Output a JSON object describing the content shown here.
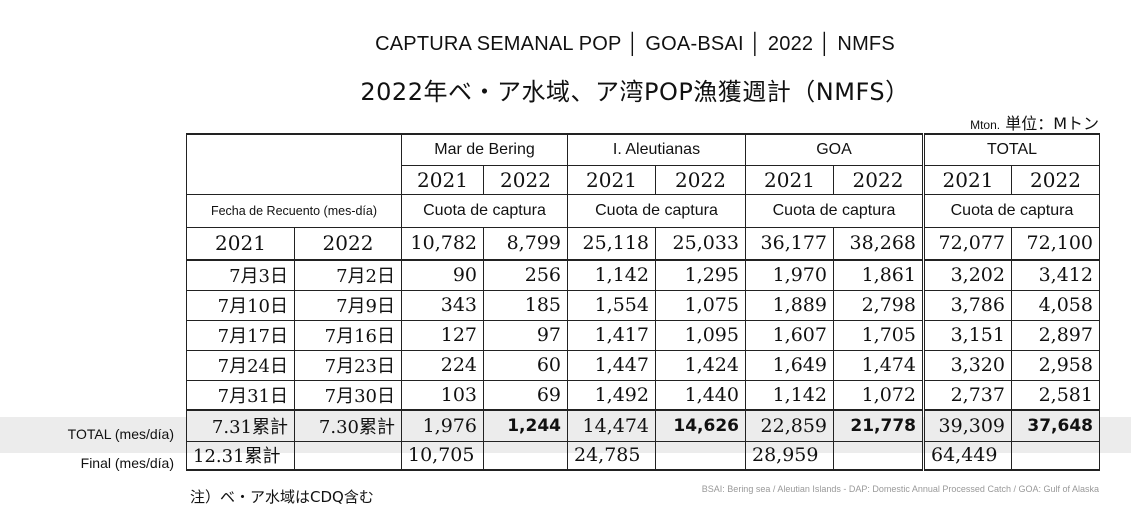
{
  "header": {
    "title": "CAPTURA SEMANAL POP │ GOA-BSAI │ 2022 │ NMFS",
    "subtitle": "2022年ベ・ア水域、ア湾POP漁獲週計（NMFS）",
    "unit_en": "Mton.",
    "unit_jp": "単位：Mトン"
  },
  "table": {
    "regions": [
      "Mar de Bering",
      "I. Aleutianas",
      "GOA",
      "TOTAL"
    ],
    "years": [
      "2021",
      "2022"
    ],
    "quota_label": "Cuota de captura",
    "fecha_label": "Fecha de Recuento (mes-día)",
    "quota_row": {
      "y1": "2021",
      "y2": "2022",
      "values": [
        "10,782",
        "8,799",
        "25,118",
        "25,033",
        "36,177",
        "38,268",
        "72,077",
        "72,100"
      ]
    },
    "rows": [
      {
        "d1": "7月3日",
        "d2": "7月2日",
        "values": [
          "90",
          "256",
          "1,142",
          "1,295",
          "1,970",
          "1,861",
          "3,202",
          "3,412"
        ]
      },
      {
        "d1": "7月10日",
        "d2": "7月9日",
        "values": [
          "343",
          "185",
          "1,554",
          "1,075",
          "1,889",
          "2,798",
          "3,786",
          "4,058"
        ]
      },
      {
        "d1": "7月17日",
        "d2": "7月16日",
        "values": [
          "127",
          "97",
          "1,417",
          "1,095",
          "1,607",
          "1,705",
          "3,151",
          "2,897"
        ]
      },
      {
        "d1": "7月24日",
        "d2": "7月23日",
        "values": [
          "224",
          "60",
          "1,447",
          "1,424",
          "1,649",
          "1,474",
          "3,320",
          "2,958"
        ]
      },
      {
        "d1": "7月31日",
        "d2": "7月30日",
        "values": [
          "103",
          "69",
          "1,492",
          "1,440",
          "1,142",
          "1,072",
          "2,737",
          "2,581"
        ]
      }
    ],
    "total_row": {
      "label": "TOTAL (mes/día)",
      "d1": "7.31累計",
      "d2": "7.30累計",
      "values": [
        "1,976",
        "1,244",
        "14,474",
        "14,626",
        "22,859",
        "21,778",
        "39,309",
        "37,648"
      ]
    },
    "final_row": {
      "label": "Final (mes/día)",
      "d1": "12.31累計",
      "values": [
        "10,705",
        "24,785",
        "28,959",
        "64,449"
      ]
    }
  },
  "note": "注）ベ・ア水域はCDQ含む",
  "footer": "BSAI: Bering sea / Aleutian Islands - DAP: Domestic Annual Processed Catch / GOA: Gulf of Alaska"
}
